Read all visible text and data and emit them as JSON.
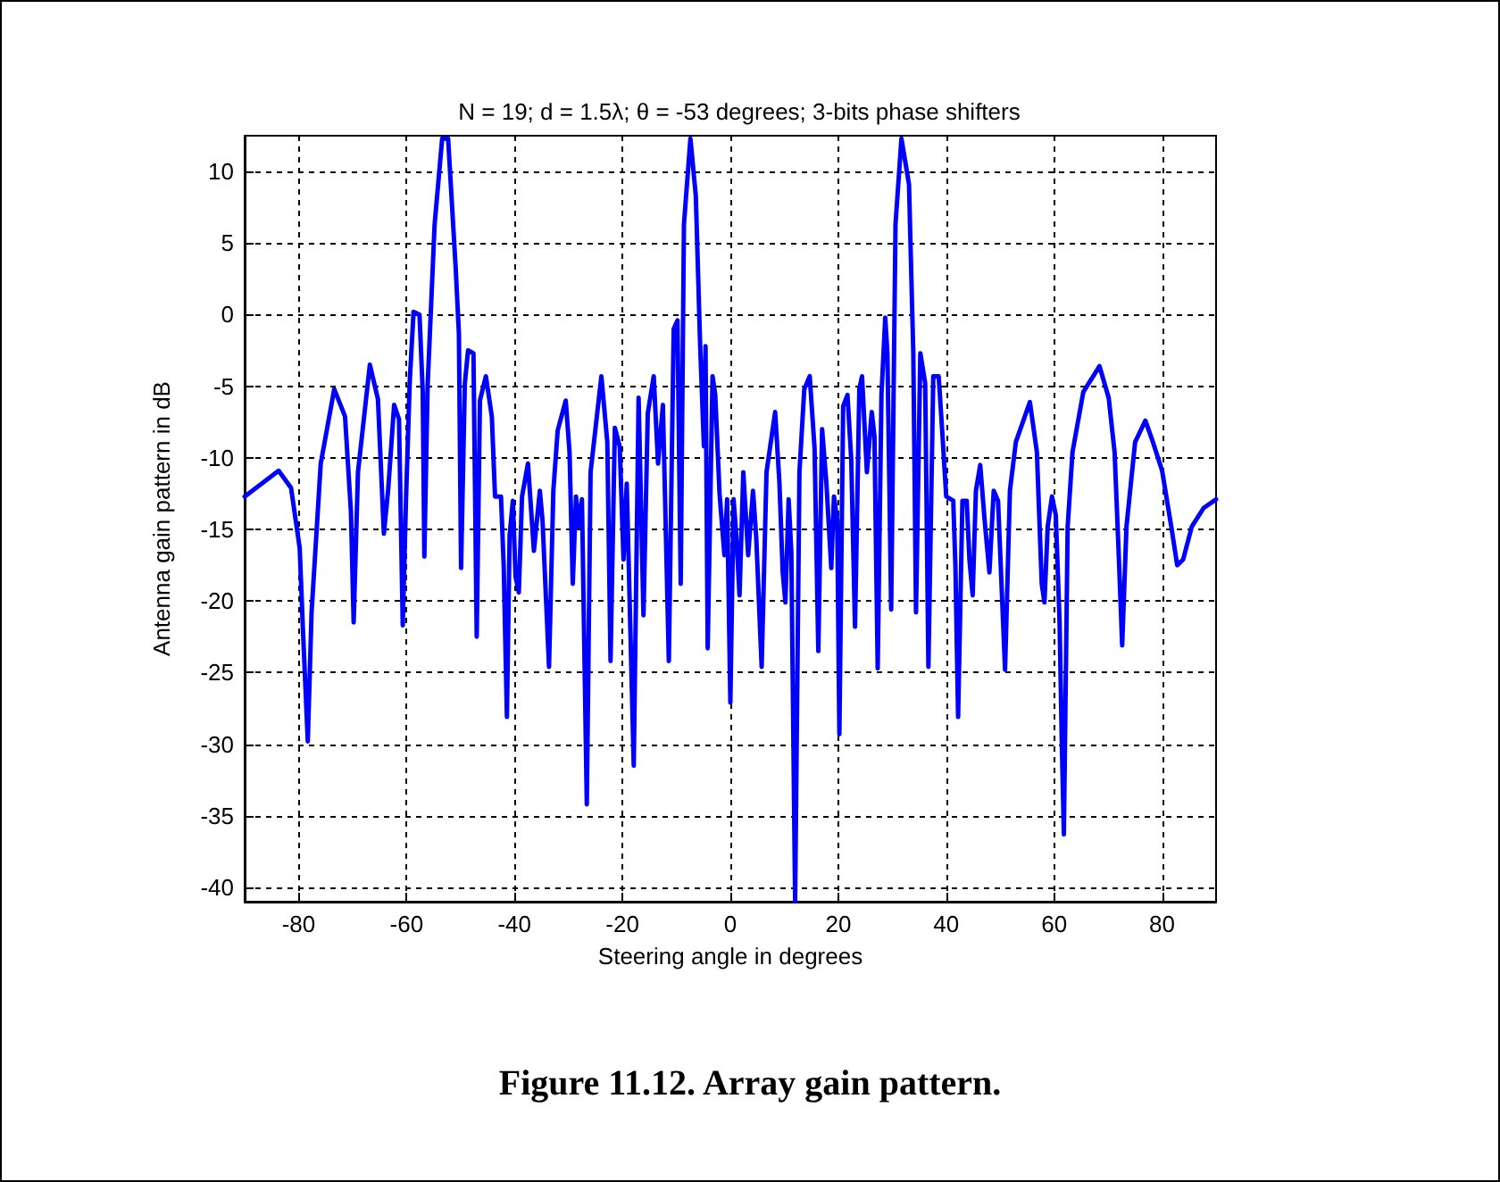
{
  "chart_data": {
    "type": "line",
    "title": "N = 19; d = 1.5λ; θ = -53 degrees; 3-bits phase shifters",
    "xlabel": "Steering angle in degrees",
    "ylabel": "Antenna gain pattern in dB",
    "annotations": [
      "Figure 11.12. Array gain pattern."
    ],
    "x": [
      -90,
      -83.7,
      -81.4,
      -79.8,
      -79.2,
      -78.3,
      -77.6,
      -75.9,
      -73.4,
      -71.4,
      -70.3,
      -69.8,
      -69,
      -66.8,
      -65.3,
      -64.2,
      -63.4,
      -62.3,
      -61.4,
      -60.7,
      -60.1,
      -59.4,
      -58.7,
      -57.6,
      -57,
      -56.7,
      -56.1,
      -54.8,
      -53.4,
      -52.3,
      -50.9,
      -50.3,
      -49.9,
      -49.2,
      -48.6,
      -47.6,
      -47,
      -46.4,
      -45.3,
      -44.2,
      -43.6,
      -42.5,
      -42,
      -41.4,
      -40.9,
      -40.3,
      -39.8,
      -39.2,
      -38.6,
      -37.5,
      -36.4,
      -35.3,
      -34.8,
      -33.6,
      -32.8,
      -32,
      -30.5,
      -29.8,
      -29.2,
      -28.6,
      -28.1,
      -27.5,
      -26.6,
      -25.9,
      -23.9,
      -22.8,
      -22.2,
      -21.4,
      -20.5,
      -19.8,
      -19.2,
      -17.9,
      -17,
      -16.1,
      -15.3,
      -14.2,
      -13.4,
      -12.5,
      -11.4,
      -10.5,
      -9.8,
      -9.2,
      -8.6,
      -7.4,
      -6.4,
      -5.6,
      -4.9,
      -4.6,
      -4.2,
      -3.3,
      -2.8,
      -2,
      -1.1,
      -0.6,
      0,
      0.6,
      1.1,
      1.7,
      2.4,
      3.3,
      4.2,
      4.8,
      5.8,
      6.7,
      8.3,
      9.1,
      9.7,
      10.2,
      10.8,
      11.3,
      12,
      12.8,
      13.7,
      14.7,
      15.6,
      16.3,
      17,
      17.8,
      18.7,
      19.2,
      19.8,
      20.2,
      20.9,
      21.7,
      22.4,
      23.1,
      23.9,
      24.4,
      25.3,
      26.2,
      26.7,
      27.3,
      28,
      28.7,
      29.1,
      29.8,
      30.6,
      31.7,
      33.1,
      33.9,
      34.4,
      35.2,
      36.1,
      36.7,
      37.6,
      38.6,
      39.3,
      40,
      41.3,
      41.7,
      42.2,
      43,
      43.8,
      44.3,
      44.9,
      45.5,
      46.3,
      47.1,
      48,
      48.8,
      49.6,
      50.9,
      51.8,
      52.9,
      55.5,
      56.8,
      57.7,
      58.2,
      58.8,
      59.6,
      60.3,
      61,
      61.4,
      61.8,
      62.5,
      63.4,
      65.4,
      68.4,
      70.1,
      71.2,
      72,
      72.6,
      73.4,
      75,
      76.9,
      78.3,
      80,
      81.7,
      82.8,
      83.9,
      85.5,
      87.7,
      90
    ],
    "series": [
      {
        "color": "#0000ff",
        "values": [
          -12.7,
          -10.9,
          -12.1,
          -16.3,
          -22,
          -29.8,
          -20.8,
          -10.4,
          -5.2,
          -7.1,
          -13.8,
          -21.5,
          -11,
          -3.5,
          -5.9,
          -15.3,
          -12.2,
          -6.3,
          -7.3,
          -21.7,
          -12.9,
          -4.6,
          0.2,
          0,
          -5.4,
          -16.9,
          -5,
          6.3,
          12.3,
          12.3,
          3.3,
          -1.3,
          -17.7,
          -4.8,
          -2.5,
          -2.7,
          -22.5,
          -6,
          -4.3,
          -7.1,
          -12.7,
          -12.7,
          -17.5,
          -28.1,
          -15.4,
          -13,
          -18.3,
          -19.4,
          -12.7,
          -10.4,
          -16.5,
          -12.3,
          -14.4,
          -24.6,
          -12.3,
          -8.1,
          -6,
          -9.6,
          -18.8,
          -12.7,
          -14.8,
          -12.9,
          -34.2,
          -11,
          -4.3,
          -8.9,
          -24.2,
          -7.9,
          -9.2,
          -17.1,
          -11.8,
          -31.5,
          -5.8,
          -21,
          -6.9,
          -4.3,
          -10.4,
          -6.3,
          -24.2,
          -1,
          -0.4,
          -18.8,
          6.3,
          12.3,
          8.3,
          -2.1,
          -9.2,
          -2.2,
          -23.3,
          -4.3,
          -5.6,
          -12.5,
          -16.8,
          -12.9,
          -27.1,
          -12.9,
          -15.4,
          -19.6,
          -11,
          -16.8,
          -12.3,
          -15.6,
          -24.6,
          -11,
          -6.8,
          -11.8,
          -18,
          -20.1,
          -12.9,
          -16.6,
          -41,
          -11,
          -5.2,
          -4.3,
          -9.3,
          -23.5,
          -8,
          -11.8,
          -17.7,
          -12.7,
          -14.3,
          -29.3,
          -6.4,
          -5.6,
          -10.1,
          -21.8,
          -5.2,
          -4.3,
          -11,
          -6.8,
          -8.5,
          -24.7,
          -5.6,
          -0.2,
          -2.7,
          -20.6,
          6.3,
          12.3,
          9.1,
          -2.7,
          -20.8,
          -2.7,
          -4.8,
          -24.6,
          -4.3,
          -4.3,
          -8.4,
          -12.7,
          -13,
          -17.5,
          -28.1,
          -13,
          -13,
          -17.1,
          -19.6,
          -12.3,
          -10.5,
          -14.3,
          -18,
          -12.3,
          -13,
          -24.8,
          -12.3,
          -8.9,
          -6.1,
          -9.6,
          -18.8,
          -20.1,
          -14.8,
          -12.7,
          -14,
          -21.4,
          -29.6,
          -36.3,
          -14.8,
          -9.6,
          -5.4,
          -3.6,
          -5.8,
          -9.6,
          -17.1,
          -23.1,
          -14.8,
          -8.9,
          -7.4,
          -8.9,
          -10.9,
          -14.8,
          -17.5,
          -17.1,
          -14.8,
          -13.5,
          -12.9
        ]
      }
    ],
    "xlim": [
      -90,
      90
    ],
    "xticks": [
      -80,
      -60,
      -40,
      -20,
      0,
      20,
      40,
      60,
      80
    ],
    "ylim": [
      -41,
      12.5
    ],
    "yticks": [
      -40,
      -35,
      -30,
      -25,
      -20,
      -15,
      -10,
      -5,
      0,
      5,
      10
    ],
    "grid": true,
    "marker": "none",
    "line_style": "solid"
  }
}
